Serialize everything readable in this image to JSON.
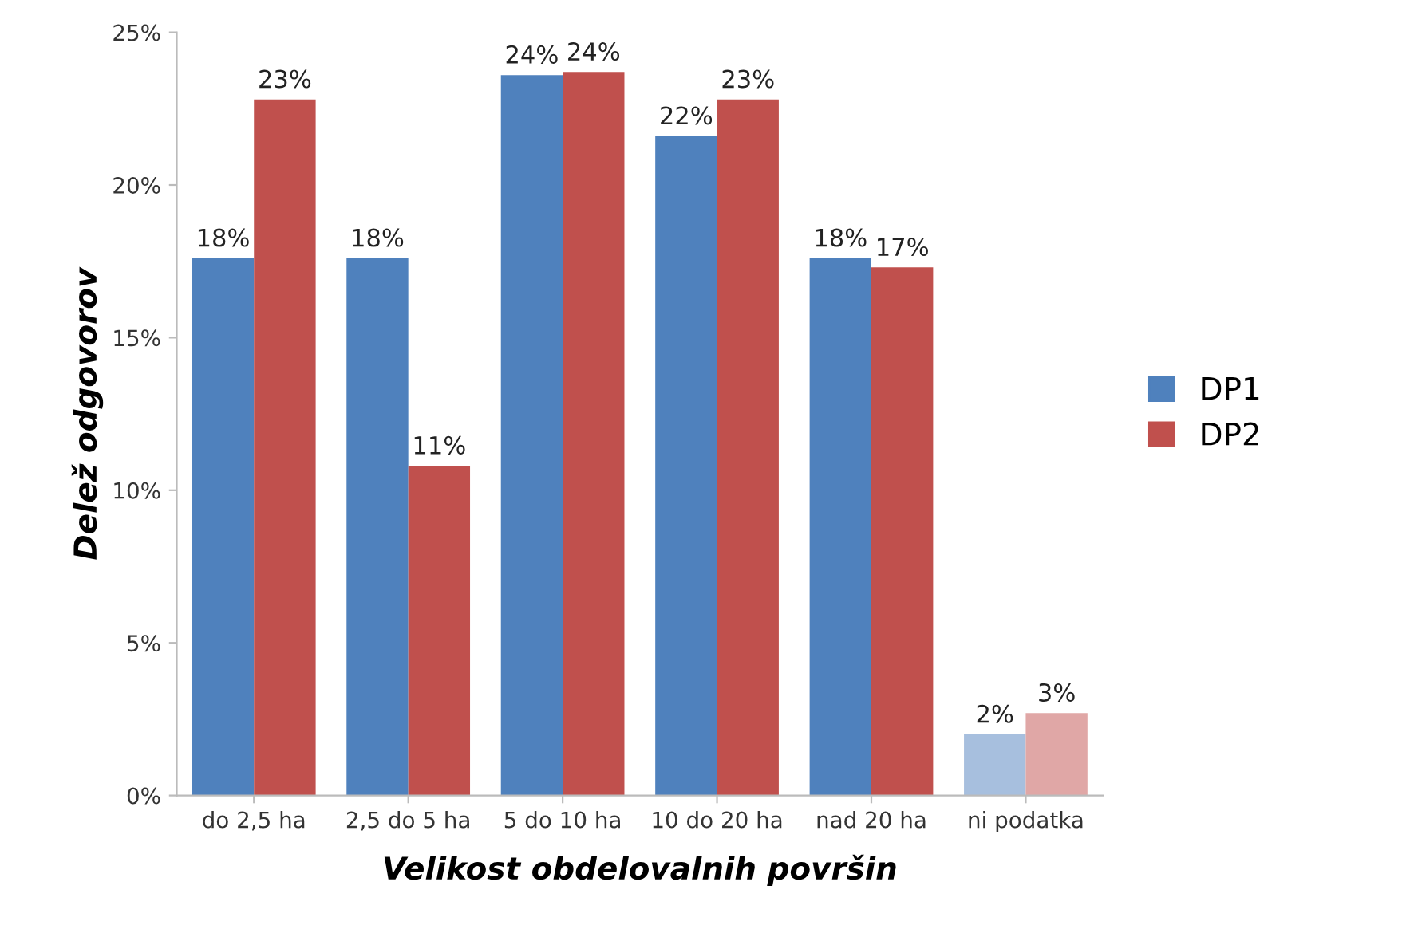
{
  "chart_data": {
    "type": "bar",
    "xlabel": "Velikost obdelovalnih površin",
    "ylabel": "Delež odgovorov",
    "categories": [
      "do 2,5 ha",
      "2,5 do 5 ha",
      "5 do 10 ha",
      "10 do 20 ha",
      "nad 20 ha",
      "ni podatka"
    ],
    "series": [
      {
        "name": "DP1",
        "color": "#4f81bd",
        "colors": [
          "#4f81bd",
          "#4f81bd",
          "#4f81bd",
          "#4f81bd",
          "#4f81bd",
          "#a7bfde"
        ],
        "values": [
          17.6,
          17.6,
          23.6,
          21.6,
          17.6,
          2.0
        ],
        "value_labels": [
          "18%",
          "18%",
          "24%",
          "22%",
          "18%",
          "2%"
        ]
      },
      {
        "name": "DP2",
        "color": "#c0504d",
        "colors": [
          "#c0504d",
          "#c0504d",
          "#c0504d",
          "#c0504d",
          "#c0504d",
          "#e0a7a6"
        ],
        "values": [
          22.8,
          10.8,
          23.7,
          22.8,
          17.3,
          2.7
        ],
        "value_labels": [
          "23%",
          "11%",
          "24%",
          "23%",
          "17%",
          "3%"
        ]
      }
    ],
    "ylim": [
      0,
      25
    ],
    "yticks": [
      {
        "value": 0,
        "label": "0%"
      },
      {
        "value": 5,
        "label": "5%"
      },
      {
        "value": 10,
        "label": "10%"
      },
      {
        "value": 15,
        "label": "15%"
      },
      {
        "value": 20,
        "label": "20%"
      },
      {
        "value": 25,
        "label": "25%"
      }
    ],
    "grid": false,
    "legend": "right"
  }
}
